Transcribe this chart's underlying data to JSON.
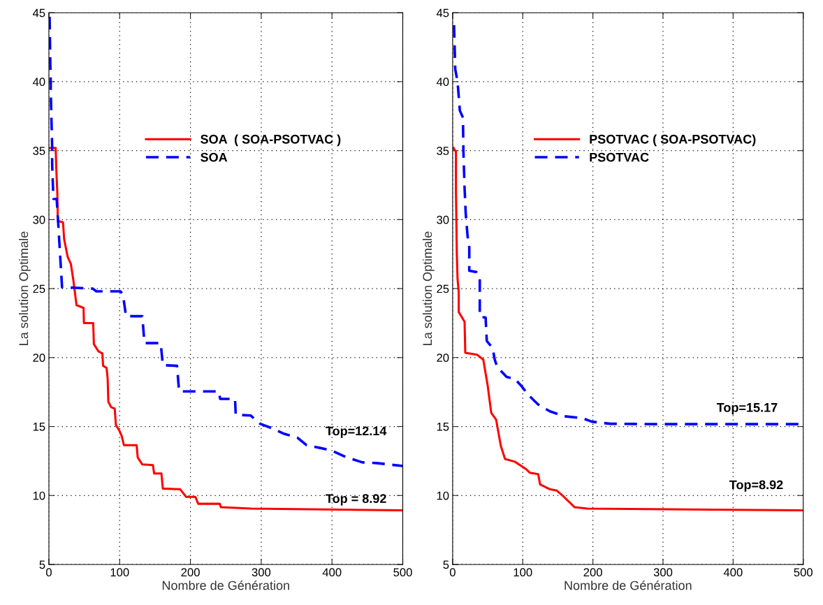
{
  "chart_data": [
    {
      "type": "line",
      "xlabel": "Nombre de Génération",
      "ylabel": "La solution Optimale",
      "xlim": [
        0,
        500
      ],
      "ylim": [
        5,
        45
      ],
      "xticks": [
        0,
        100,
        200,
        300,
        400,
        500
      ],
      "yticks": [
        5,
        10,
        15,
        20,
        25,
        30,
        35,
        40,
        45
      ],
      "grid": true,
      "legend": "top",
      "series": [
        {
          "name": "SOA  ( SOA-PSOTVAC )",
          "color": "#ff0000",
          "line_style": "solid",
          "x": [
            1,
            9.6,
            10.5,
            12,
            12.6,
            20,
            21.5,
            26.5,
            31,
            34.6,
            39,
            49,
            49.5,
            62.6,
            63.6,
            70,
            75.6,
            76.6,
            81.5,
            83,
            84,
            88,
            93,
            94.7,
            99.6,
            103,
            106,
            124,
            125.5,
            132,
            147,
            148.7,
            159,
            161,
            185.5,
            194,
            207,
            211,
            241.5,
            243,
            286,
            500
          ],
          "values": [
            35.2,
            35.2,
            33.65,
            31.8,
            29.9,
            29.8,
            28.6,
            27.3,
            26.8,
            25.6,
            23.8,
            23.6,
            22.5,
            22.5,
            20.97,
            20.45,
            20.3,
            19.4,
            19.25,
            18.5,
            16.8,
            16.4,
            16.3,
            15.1,
            14.7,
            14.3,
            13.65,
            13.65,
            12.75,
            12.25,
            12.2,
            11.6,
            11.6,
            10.5,
            10.45,
            9.9,
            9.9,
            9.4,
            9.4,
            9.15,
            9.05,
            8.92
          ]
        },
        {
          "name": "SOA",
          "color": "#0000ff",
          "line_style": "dashed",
          "x": [
            1,
            2,
            2.6,
            2.6,
            4.6,
            4.6,
            6.4,
            11,
            13,
            16,
            18.6,
            62,
            67,
            101,
            104.5,
            109,
            132,
            135,
            158,
            161,
            181,
            184,
            240,
            242,
            263,
            264,
            285,
            298.5,
            316.5,
            331,
            351,
            364,
            383,
            400,
            419,
            443,
            463,
            500
          ],
          "values": [
            44.7,
            41.3,
            40,
            39.3,
            35.3,
            34,
            31.5,
            31.5,
            29.9,
            27.3,
            25.1,
            25.0,
            24.8,
            24.8,
            24.6,
            23.0,
            23.0,
            21.05,
            21.05,
            19.45,
            19.4,
            17.55,
            17.55,
            17.0,
            17.0,
            15.85,
            15.8,
            15.2,
            14.85,
            14.5,
            14.2,
            13.65,
            13.45,
            13.25,
            12.8,
            12.4,
            12.35,
            12.14
          ]
        }
      ],
      "annotations": [
        "Top=12.14",
        "Top = 8.92"
      ]
    },
    {
      "type": "line",
      "xlabel": "Nombre de Génération",
      "ylabel": "La solution Optimale",
      "xlim": [
        0,
        500
      ],
      "ylim": [
        5,
        45
      ],
      "xticks": [
        0,
        100,
        200,
        300,
        400,
        500
      ],
      "yticks": [
        5,
        10,
        15,
        20,
        25,
        30,
        35,
        40,
        45
      ],
      "grid": true,
      "legend": "top",
      "series": [
        {
          "name": "PSOTVAC ( SOA-PSOTVAC)",
          "color": "#ff0000",
          "line_style": "solid",
          "x": [
            1.3,
            4.7,
            4.7,
            6,
            7,
            8.7,
            8.7,
            17,
            18,
            35,
            43.7,
            50,
            55,
            62,
            68.7,
            74.7,
            88.7,
            105,
            110,
            122,
            124.7,
            138.7,
            148.7,
            158.7,
            174,
            192,
            500
          ],
          "values": [
            35.2,
            34.9,
            32.0,
            27.45,
            25.7,
            24.75,
            23.3,
            22.6,
            20.35,
            20.2,
            19.85,
            17.95,
            16.0,
            15.5,
            13.6,
            12.65,
            12.45,
            11.9,
            11.65,
            11.55,
            10.8,
            10.45,
            10.35,
            9.9,
            9.15,
            9.05,
            8.92
          ]
        },
        {
          "name": "PSOTVAC",
          "color": "#0000ff",
          "line_style": "dashed",
          "x": [
            2,
            3.7,
            7,
            10.3,
            14.7,
            15.3,
            17,
            18.7,
            21.3,
            23.7,
            23.7,
            33.7,
            38.7,
            38.7,
            47,
            48.7,
            57,
            60,
            63.7,
            77,
            88.7,
            98.7,
            108.7,
            122,
            138.7,
            158.7,
            185.3,
            198.7,
            225,
            292,
            500
          ],
          "values": [
            44.1,
            40.9,
            40.0,
            37.9,
            37.4,
            35.0,
            32.3,
            30.4,
            28.8,
            28.0,
            26.3,
            26.2,
            25.9,
            22.95,
            22.9,
            21.2,
            20.7,
            19.85,
            19.3,
            18.6,
            18.45,
            17.9,
            17.25,
            16.6,
            16.1,
            15.75,
            15.6,
            15.35,
            15.2,
            15.17,
            15.17
          ]
        }
      ],
      "annotations": [
        "Top=15.17",
        "Top=8.92"
      ]
    }
  ]
}
